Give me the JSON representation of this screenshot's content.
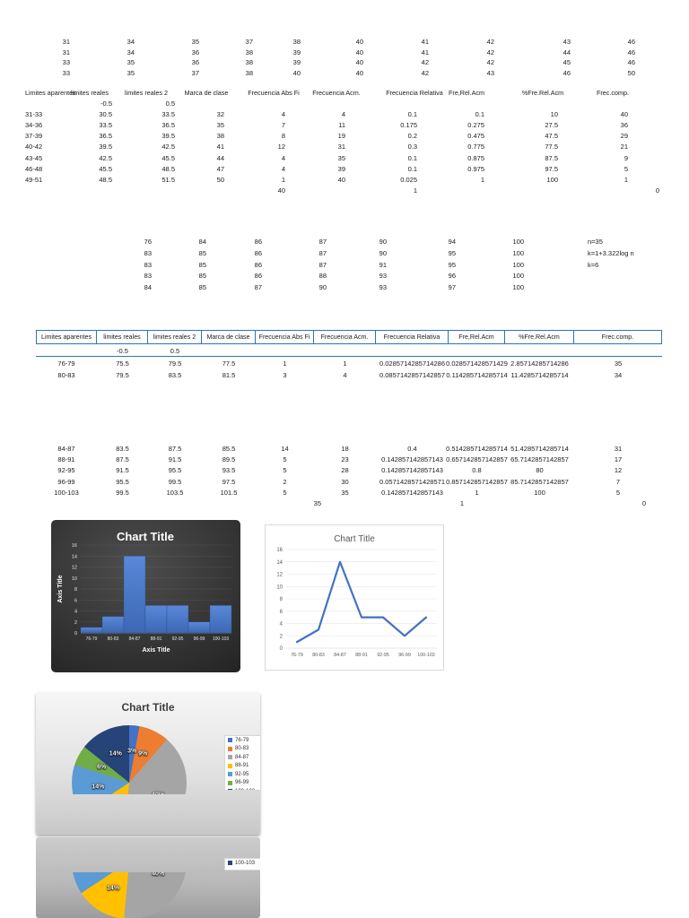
{
  "grid1": {
    "rows": [
      [
        "31",
        "34",
        "35",
        "37",
        "38",
        "40",
        "41",
        "42",
        "43",
        "46"
      ],
      [
        "31",
        "34",
        "36",
        "38",
        "39",
        "40",
        "41",
        "42",
        "44",
        "46"
      ],
      [
        "33",
        "35",
        "36",
        "38",
        "39",
        "40",
        "42",
        "42",
        "45",
        "46"
      ],
      [
        "33",
        "35",
        "37",
        "38",
        "40",
        "40",
        "42",
        "43",
        "46",
        "50"
      ]
    ]
  },
  "table1": {
    "headers": [
      "Limites aparentes",
      "limites reales",
      "limites reales 2",
      "Marca de clase",
      "Frecuencia Abs Fi",
      "Frecuencia Acm.",
      "Frecuencia Relativa",
      "Fre,Rel.Acm",
      "%Fre.Rel.Acm",
      "Frec.comp."
    ],
    "subrow": [
      "-0.5",
      "0.5"
    ],
    "rows": [
      [
        "31-33",
        "30.5",
        "33.5",
        "32",
        "4",
        "4",
        "0.1",
        "0.1",
        "10",
        "40"
      ],
      [
        "34-36",
        "33.5",
        "36.5",
        "35",
        "7",
        "11",
        "0.175",
        "0.275",
        "27.5",
        "36"
      ],
      [
        "37-39",
        "36.5",
        "39.5",
        "38",
        "8",
        "19",
        "0.2",
        "0.475",
        "47.5",
        "29"
      ],
      [
        "40-42",
        "39.5",
        "42.5",
        "41",
        "12",
        "31",
        "0.3",
        "0.775",
        "77.5",
        "21"
      ],
      [
        "43-45",
        "42.5",
        "45.5",
        "44",
        "4",
        "35",
        "0.1",
        "0.875",
        "87.5",
        "9"
      ],
      [
        "46-48",
        "45.5",
        "48.5",
        "47",
        "4",
        "39",
        "0.1",
        "0.975",
        "97.5",
        "5"
      ],
      [
        "49-51",
        "48.5",
        "51.5",
        "50",
        "1",
        "40",
        "0.025",
        "1",
        "100",
        "1"
      ]
    ],
    "totals": {
      "abs": "40",
      "rel": "1",
      "comp": "0"
    }
  },
  "grid2": {
    "rows": [
      [
        "76",
        "84",
        "86",
        "87",
        "90",
        "94",
        "100"
      ],
      [
        "83",
        "85",
        "86",
        "87",
        "90",
        "95",
        "100"
      ],
      [
        "83",
        "85",
        "86",
        "87",
        "91",
        "95",
        "100"
      ],
      [
        "83",
        "85",
        "86",
        "88",
        "93",
        "96",
        "100"
      ],
      [
        "84",
        "85",
        "87",
        "90",
        "93",
        "97",
        "100"
      ]
    ]
  },
  "notes": [
    "n=35",
    "k=1+3.322log n",
    "k=6"
  ],
  "table2": {
    "headers": [
      "Limites aparentes",
      "limites reales",
      "limites reales 2",
      "Marca de clase",
      "Frecuencia Abs Fi",
      "Frecuencia Acm.",
      "Frecuencia Relativa",
      "Fre,Rel.Acm",
      "%Fre.Rel.Acm",
      "Frec.comp."
    ],
    "subrow": [
      "-0.5",
      "0.5"
    ],
    "border_color": "#2E74B5",
    "rows": [
      [
        "76-79",
        "75.5",
        "79.5",
        "77.5",
        "1",
        "1",
        "0.0285714285714286",
        "0.028571428571429",
        "2.85714285714286",
        "35"
      ],
      [
        "80-83",
        "79.5",
        "83.5",
        "81.5",
        "3",
        "4",
        "0.0857142857142857",
        "0.114285714285714",
        "11.4285714285714",
        "34"
      ]
    ],
    "rows_continued": [
      [
        "84-87",
        "83.5",
        "87.5",
        "85.5",
        "14",
        "18",
        "0.4",
        "0.514285714285714",
        "51.4285714285714",
        "31"
      ],
      [
        "88-91",
        "87.5",
        "91.5",
        "89.5",
        "5",
        "23",
        "0.142857142857143",
        "0.657142857142857",
        "65.7142857142857",
        "17"
      ],
      [
        "92-95",
        "91.5",
        "95.5",
        "93.5",
        "5",
        "28",
        "0.142857142857143",
        "0.8",
        "80",
        "12"
      ],
      [
        "96-99",
        "95.5",
        "99.5",
        "97.5",
        "2",
        "30",
        "0.0571428571428571",
        "0.857142857142857",
        "85.7142857142857",
        "7"
      ],
      [
        "100-103",
        "99.5",
        "103.5",
        "101.5",
        "5",
        "35",
        "0.142857142857143",
        "1",
        "100",
        "5"
      ]
    ],
    "totals": {
      "abs": "35",
      "rel": "1",
      "comp": "0"
    }
  },
  "chart_data": [
    {
      "type": "bar",
      "style": "dark-histogram",
      "title": "Chart Title",
      "xlabel": "Axis Title",
      "ylabel": "Axis Title",
      "categories": [
        "76-79",
        "80-83",
        "84-87",
        "88-91",
        "92-95",
        "96-99",
        "100-103"
      ],
      "values": [
        1,
        3,
        14,
        5,
        5,
        2,
        5
      ],
      "ylim": [
        0,
        16
      ],
      "ytick_step": 2,
      "bar_color": "#4472C4",
      "background": "#333333",
      "grid": true,
      "legend_position": "none"
    },
    {
      "type": "line",
      "style": "light",
      "title": "Chart Title",
      "categories": [
        "76-79",
        "80-83",
        "84-87",
        "88-91",
        "92-95",
        "96-99",
        "100-103"
      ],
      "values": [
        1,
        3,
        14,
        5,
        5,
        2,
        5
      ],
      "ylim": [
        0,
        16
      ],
      "ytick_step": 2,
      "line_color": "#4472C4",
      "grid": true,
      "legend_position": "none"
    },
    {
      "type": "pie",
      "visible_portion": "top-half",
      "title": "Chart Title",
      "categories": [
        "76-79",
        "80-83",
        "84-87",
        "88-91",
        "92-95",
        "96-99",
        "100-103"
      ],
      "values": [
        1,
        3,
        14,
        5,
        5,
        2,
        5
      ],
      "percent_labels": [
        "3%",
        "9%",
        "40%",
        "14%",
        "14%",
        "6%",
        "14%"
      ],
      "colors": [
        "#4472C4",
        "#ED7D31",
        "#A5A5A5",
        "#FFC000",
        "#5B9BD5",
        "#70AD47",
        "#264478"
      ],
      "legend_position": "right"
    },
    {
      "type": "pie",
      "visible_portion": "bottom-half",
      "title": "",
      "categories": [
        "76-79",
        "80-83",
        "84-87",
        "88-91",
        "92-95",
        "96-99",
        "100-103"
      ],
      "values": [
        1,
        3,
        14,
        5,
        5,
        2,
        5
      ],
      "percent_labels": [
        "3%",
        "9%",
        "40%",
        "14%",
        "14%",
        "6%",
        "14%"
      ],
      "colors": [
        "#4472C4",
        "#ED7D31",
        "#A5A5A5",
        "#FFC000",
        "#5B9BD5",
        "#70AD47",
        "#264478"
      ],
      "legend_position": "right",
      "legend_visible_entries": [
        "100-103"
      ]
    }
  ]
}
